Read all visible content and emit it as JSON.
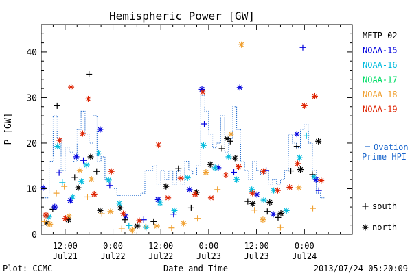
{
  "chart_data": {
    "type": "scatter",
    "title": "Hemispheric Power [GW]",
    "ylabel": "P [GW]",
    "xlabel": "Date and Time",
    "ylim": [
      0,
      46
    ],
    "xlim_hours": [
      -18,
      60
    ],
    "x_unit": "hours from 2013-07-22 00:00 UT",
    "yticks": [
      0,
      10,
      20,
      30,
      40
    ],
    "xticks": [
      {
        "hours": -12,
        "time": "12:00",
        "date": "Jul21"
      },
      {
        "hours": 0,
        "time": "0:00",
        "date": "Jul22"
      },
      {
        "hours": 12,
        "time": "12:00",
        "date": "Jul22"
      },
      {
        "hours": 24,
        "time": "0:00",
        "date": "Jul23"
      },
      {
        "hours": 36,
        "time": "12:00",
        "date": "Jul23"
      },
      {
        "hours": 48,
        "time": "0:00",
        "date": "Jul24"
      }
    ],
    "series": [
      {
        "name": "METP-02",
        "color": "#000000",
        "points": [
          {
            "x": -16.6,
            "y": 2.5,
            "h": "north"
          },
          {
            "x": -15.1,
            "y": 5.5,
            "h": "south"
          },
          {
            "x": -14.0,
            "y": 28.2,
            "h": "south"
          },
          {
            "x": -11.2,
            "y": 3.2,
            "h": "north"
          },
          {
            "x": -9.6,
            "y": 12.5,
            "h": "south"
          },
          {
            "x": -8.7,
            "y": 10.2,
            "h": "north"
          },
          {
            "x": -6.0,
            "y": 35.1,
            "h": "south"
          },
          {
            "x": -5.6,
            "y": 17.0,
            "h": "north"
          },
          {
            "x": -4.1,
            "y": 13.8,
            "h": "south"
          },
          {
            "x": -3.2,
            "y": 5.2,
            "h": "north"
          },
          {
            "x": 1.8,
            "y": 5.8,
            "h": "north"
          },
          {
            "x": 3.0,
            "y": 3.2,
            "h": "south"
          },
          {
            "x": 6.1,
            "y": 1.8,
            "h": "north"
          },
          {
            "x": 10.2,
            "y": 2.8,
            "h": "south"
          },
          {
            "x": 13.3,
            "y": 10.5,
            "h": "north"
          },
          {
            "x": 16.4,
            "y": 14.4,
            "h": "south"
          },
          {
            "x": 19.6,
            "y": 5.8,
            "h": "south"
          },
          {
            "x": 21.0,
            "y": 9.2,
            "h": "north"
          },
          {
            "x": 24.4,
            "y": 15.3,
            "h": "north"
          },
          {
            "x": 27.3,
            "y": 18.8,
            "h": "south"
          },
          {
            "x": 28.6,
            "y": 21.0,
            "h": "north"
          },
          {
            "x": 29.4,
            "y": 20.4,
            "h": "south"
          },
          {
            "x": 30.6,
            "y": 16.7,
            "h": "north"
          },
          {
            "x": 33.8,
            "y": 7.2,
            "h": "south"
          },
          {
            "x": 35.0,
            "y": 6.7,
            "h": "north"
          },
          {
            "x": 38.7,
            "y": 5.0,
            "h": "south"
          },
          {
            "x": 39.3,
            "y": 7.0,
            "h": "north"
          },
          {
            "x": 41.4,
            "y": 3.7,
            "h": "south"
          },
          {
            "x": 42.1,
            "y": 4.6,
            "h": "north"
          },
          {
            "x": 44.6,
            "y": 13.9,
            "h": "south"
          },
          {
            "x": 46.1,
            "y": 19.3,
            "h": "south"
          },
          {
            "x": 47.0,
            "y": 14.2,
            "h": "north"
          },
          {
            "x": 50.0,
            "y": 13.1,
            "h": "south"
          },
          {
            "x": 51.5,
            "y": 20.4,
            "h": "north"
          }
        ]
      },
      {
        "name": "NOAA-15",
        "color": "#0000dd",
        "points": [
          {
            "x": -17.5,
            "y": 10.2,
            "h": "north"
          },
          {
            "x": -14.6,
            "y": 6.0,
            "h": "north"
          },
          {
            "x": -13.5,
            "y": 13.5,
            "h": "south"
          },
          {
            "x": -10.7,
            "y": 7.4,
            "h": "north"
          },
          {
            "x": -9.2,
            "y": 17.0,
            "h": "north"
          },
          {
            "x": -7.4,
            "y": 16.2,
            "h": "south"
          },
          {
            "x": -3.2,
            "y": 23.0,
            "h": "north"
          },
          {
            "x": -0.8,
            "y": 10.7,
            "h": "south"
          },
          {
            "x": 3.2,
            "y": 4.0,
            "h": "north"
          },
          {
            "x": 7.7,
            "y": 3.2,
            "h": "south"
          },
          {
            "x": 11.3,
            "y": 7.6,
            "h": "north"
          },
          {
            "x": 15.2,
            "y": 4.4,
            "h": "south"
          },
          {
            "x": 19.2,
            "y": 9.8,
            "h": "north"
          },
          {
            "x": 22.3,
            "y": 31.8,
            "h": "north"
          },
          {
            "x": 22.9,
            "y": 24.2,
            "h": "south"
          },
          {
            "x": 26.4,
            "y": 14.6,
            "h": "north"
          },
          {
            "x": 30.3,
            "y": 13.6,
            "h": "south"
          },
          {
            "x": 31.8,
            "y": 32.2,
            "h": "north"
          },
          {
            "x": 36.1,
            "y": 8.7,
            "h": "north"
          },
          {
            "x": 38.4,
            "y": 14.0,
            "h": "south"
          },
          {
            "x": 40.2,
            "y": 4.4,
            "h": "north"
          },
          {
            "x": 46.1,
            "y": 22.0,
            "h": "north"
          },
          {
            "x": 47.6,
            "y": 41.0,
            "h": "south"
          },
          {
            "x": 50.9,
            "y": 12.0,
            "h": "north"
          },
          {
            "x": 51.6,
            "y": 9.6,
            "h": "south"
          }
        ]
      },
      {
        "name": "NOAA-16",
        "color": "#00bbdd",
        "points": [
          {
            "x": -16.1,
            "y": 3.8,
            "h": "north"
          },
          {
            "x": -13.9,
            "y": 19.3,
            "h": "north"
          },
          {
            "x": -12.7,
            "y": 11.4,
            "h": "south"
          },
          {
            "x": -10.1,
            "y": 8.2,
            "h": "north"
          },
          {
            "x": -7.9,
            "y": 11.6,
            "h": "north"
          },
          {
            "x": -6.6,
            "y": 15.2,
            "h": "north"
          },
          {
            "x": -3.6,
            "y": 17.8,
            "h": "north"
          },
          {
            "x": -1.1,
            "y": 11.9,
            "h": "north"
          },
          {
            "x": 1.6,
            "y": 6.8,
            "h": "north"
          },
          {
            "x": 4.0,
            "y": 1.9,
            "h": "south"
          },
          {
            "x": 8.3,
            "y": 1.5,
            "h": "north"
          },
          {
            "x": 11.8,
            "y": 6.9,
            "h": "north"
          },
          {
            "x": 15.4,
            "y": 5.2,
            "h": "north"
          },
          {
            "x": 18.7,
            "y": 12.4,
            "h": "north"
          },
          {
            "x": 22.7,
            "y": 19.5,
            "h": "north"
          },
          {
            "x": 25.6,
            "y": 14.6,
            "h": "north"
          },
          {
            "x": 29.0,
            "y": 17.0,
            "h": "north"
          },
          {
            "x": 31.0,
            "y": 12.0,
            "h": "north"
          },
          {
            "x": 34.8,
            "y": 9.8,
            "h": "north"
          },
          {
            "x": 37.8,
            "y": 7.5,
            "h": "north"
          },
          {
            "x": 40.3,
            "y": 9.6,
            "h": "north"
          },
          {
            "x": 43.5,
            "y": 5.2,
            "h": "north"
          },
          {
            "x": 46.8,
            "y": 16.8,
            "h": "north"
          },
          {
            "x": 48.5,
            "y": 21.6,
            "h": "south"
          },
          {
            "x": 50.4,
            "y": 12.6,
            "h": "north"
          }
        ]
      },
      {
        "name": "NOAA-17",
        "color": "#00dd66",
        "points": []
      },
      {
        "name": "NOAA-18",
        "color": "#f0a030",
        "points": [
          {
            "x": -17.2,
            "y": 2.8,
            "h": "south"
          },
          {
            "x": -15.8,
            "y": 2.2,
            "h": "north"
          },
          {
            "x": -14.2,
            "y": 9.0,
            "h": "south"
          },
          {
            "x": -12.2,
            "y": 10.5,
            "h": "south"
          },
          {
            "x": -11.0,
            "y": 4.0,
            "h": "north"
          },
          {
            "x": -8.3,
            "y": 14.0,
            "h": "north"
          },
          {
            "x": -6.4,
            "y": 8.2,
            "h": "south"
          },
          {
            "x": -5.4,
            "y": 12.1,
            "h": "north"
          },
          {
            "x": -2.8,
            "y": 4.5,
            "h": "south"
          },
          {
            "x": -0.6,
            "y": 5.0,
            "h": "north"
          },
          {
            "x": 2.2,
            "y": 1.2,
            "h": "south"
          },
          {
            "x": 4.8,
            "y": 0.9,
            "h": "north"
          },
          {
            "x": 8.2,
            "y": 1.6,
            "h": "south"
          },
          {
            "x": 11.0,
            "y": 1.8,
            "h": "north"
          },
          {
            "x": 14.7,
            "y": 1.4,
            "h": "south"
          },
          {
            "x": 17.7,
            "y": 2.4,
            "h": "north"
          },
          {
            "x": 21.2,
            "y": 3.5,
            "h": "south"
          },
          {
            "x": 23.3,
            "y": 13.6,
            "h": "north"
          },
          {
            "x": 26.2,
            "y": 9.8,
            "h": "south"
          },
          {
            "x": 29.6,
            "y": 22.0,
            "h": "north"
          },
          {
            "x": 32.2,
            "y": 41.6,
            "h": "north"
          },
          {
            "x": 35.5,
            "y": 5.3,
            "h": "south"
          },
          {
            "x": 37.6,
            "y": 3.2,
            "h": "north"
          },
          {
            "x": 42.0,
            "y": 1.5,
            "h": "south"
          },
          {
            "x": 46.6,
            "y": 10.2,
            "h": "north"
          },
          {
            "x": 50.1,
            "y": 5.7,
            "h": "south"
          }
        ]
      },
      {
        "name": "NOAA-19",
        "color": "#dd2200",
        "points": [
          {
            "x": -16.8,
            "y": 4.2,
            "h": "north"
          },
          {
            "x": -13.4,
            "y": 20.6,
            "h": "north"
          },
          {
            "x": -11.9,
            "y": 3.5,
            "h": "north"
          },
          {
            "x": -10.5,
            "y": 32.3,
            "h": "north"
          },
          {
            "x": -7.6,
            "y": 22.1,
            "h": "north"
          },
          {
            "x": -6.2,
            "y": 29.7,
            "h": "north"
          },
          {
            "x": -4.7,
            "y": 8.8,
            "h": "north"
          },
          {
            "x": -0.4,
            "y": 13.8,
            "h": "north"
          },
          {
            "x": 2.6,
            "y": 4.5,
            "h": "north"
          },
          {
            "x": 6.6,
            "y": 3.0,
            "h": "north"
          },
          {
            "x": 11.4,
            "y": 19.6,
            "h": "north"
          },
          {
            "x": 13.8,
            "y": 8.0,
            "h": "north"
          },
          {
            "x": 17.0,
            "y": 12.3,
            "h": "north"
          },
          {
            "x": 20.6,
            "y": 8.8,
            "h": "north"
          },
          {
            "x": 22.5,
            "y": 31.2,
            "h": "north"
          },
          {
            "x": 24.6,
            "y": 8.0,
            "h": "north"
          },
          {
            "x": 28.3,
            "y": 13.0,
            "h": "north"
          },
          {
            "x": 31.5,
            "y": 14.8,
            "h": "north"
          },
          {
            "x": 35.0,
            "y": 9.0,
            "h": "north"
          },
          {
            "x": 37.7,
            "y": 13.8,
            "h": "north"
          },
          {
            "x": 41.3,
            "y": 9.6,
            "h": "north"
          },
          {
            "x": 44.3,
            "y": 10.3,
            "h": "north"
          },
          {
            "x": 46.3,
            "y": 15.5,
            "h": "north"
          },
          {
            "x": 48.0,
            "y": 28.2,
            "h": "north"
          },
          {
            "x": 50.6,
            "y": 30.3,
            "h": "north"
          },
          {
            "x": 52.2,
            "y": 11.8,
            "h": "north"
          }
        ]
      }
    ],
    "ovation": {
      "name": "Ovation Prime HPI",
      "legend_line1": "Ovation",
      "legend_line2": "Prime HPI",
      "color": "#1a66cc",
      "step_x": [
        -18,
        -17,
        -16,
        -15,
        -14,
        -13,
        -12,
        -11,
        -10,
        -9,
        -8,
        -7,
        -6,
        -5,
        -4,
        -3,
        -2,
        -1,
        0,
        1,
        2,
        3,
        4,
        5,
        6,
        7,
        8,
        9,
        10,
        11,
        12,
        13,
        14,
        15,
        16,
        17,
        18,
        19,
        20,
        21,
        22,
        23,
        24,
        25,
        26,
        27,
        28,
        29,
        30,
        31,
        32,
        33,
        34,
        35,
        36,
        37,
        38,
        39,
        40,
        41,
        42,
        43,
        44,
        45,
        46,
        47,
        48,
        49,
        50,
        51,
        52
      ],
      "step_y": [
        8,
        8,
        16,
        26,
        21,
        14,
        19,
        18,
        16,
        23,
        27,
        22,
        20,
        26,
        16,
        17,
        12,
        11,
        10,
        8.5,
        8.5,
        8.5,
        8.5,
        8.5,
        8.5,
        9,
        14,
        14,
        15,
        11,
        14,
        12,
        14,
        11,
        14,
        11,
        16,
        14,
        13,
        15,
        30.5,
        27,
        22,
        19,
        20,
        26,
        18,
        21,
        28,
        23,
        16,
        14,
        12,
        16,
        14,
        13,
        14,
        11,
        12,
        11,
        12,
        14,
        22,
        20,
        19,
        23,
        24,
        20,
        14,
        9,
        8
      ]
    },
    "hemisphere_legend": [
      {
        "symbol": "+",
        "label": "south"
      },
      {
        "symbol": "*",
        "label": "north"
      }
    ]
  },
  "footer": {
    "left": "Plot: CCMC",
    "center": "Date and Time",
    "right": "2013/07/24 05:20:09"
  }
}
